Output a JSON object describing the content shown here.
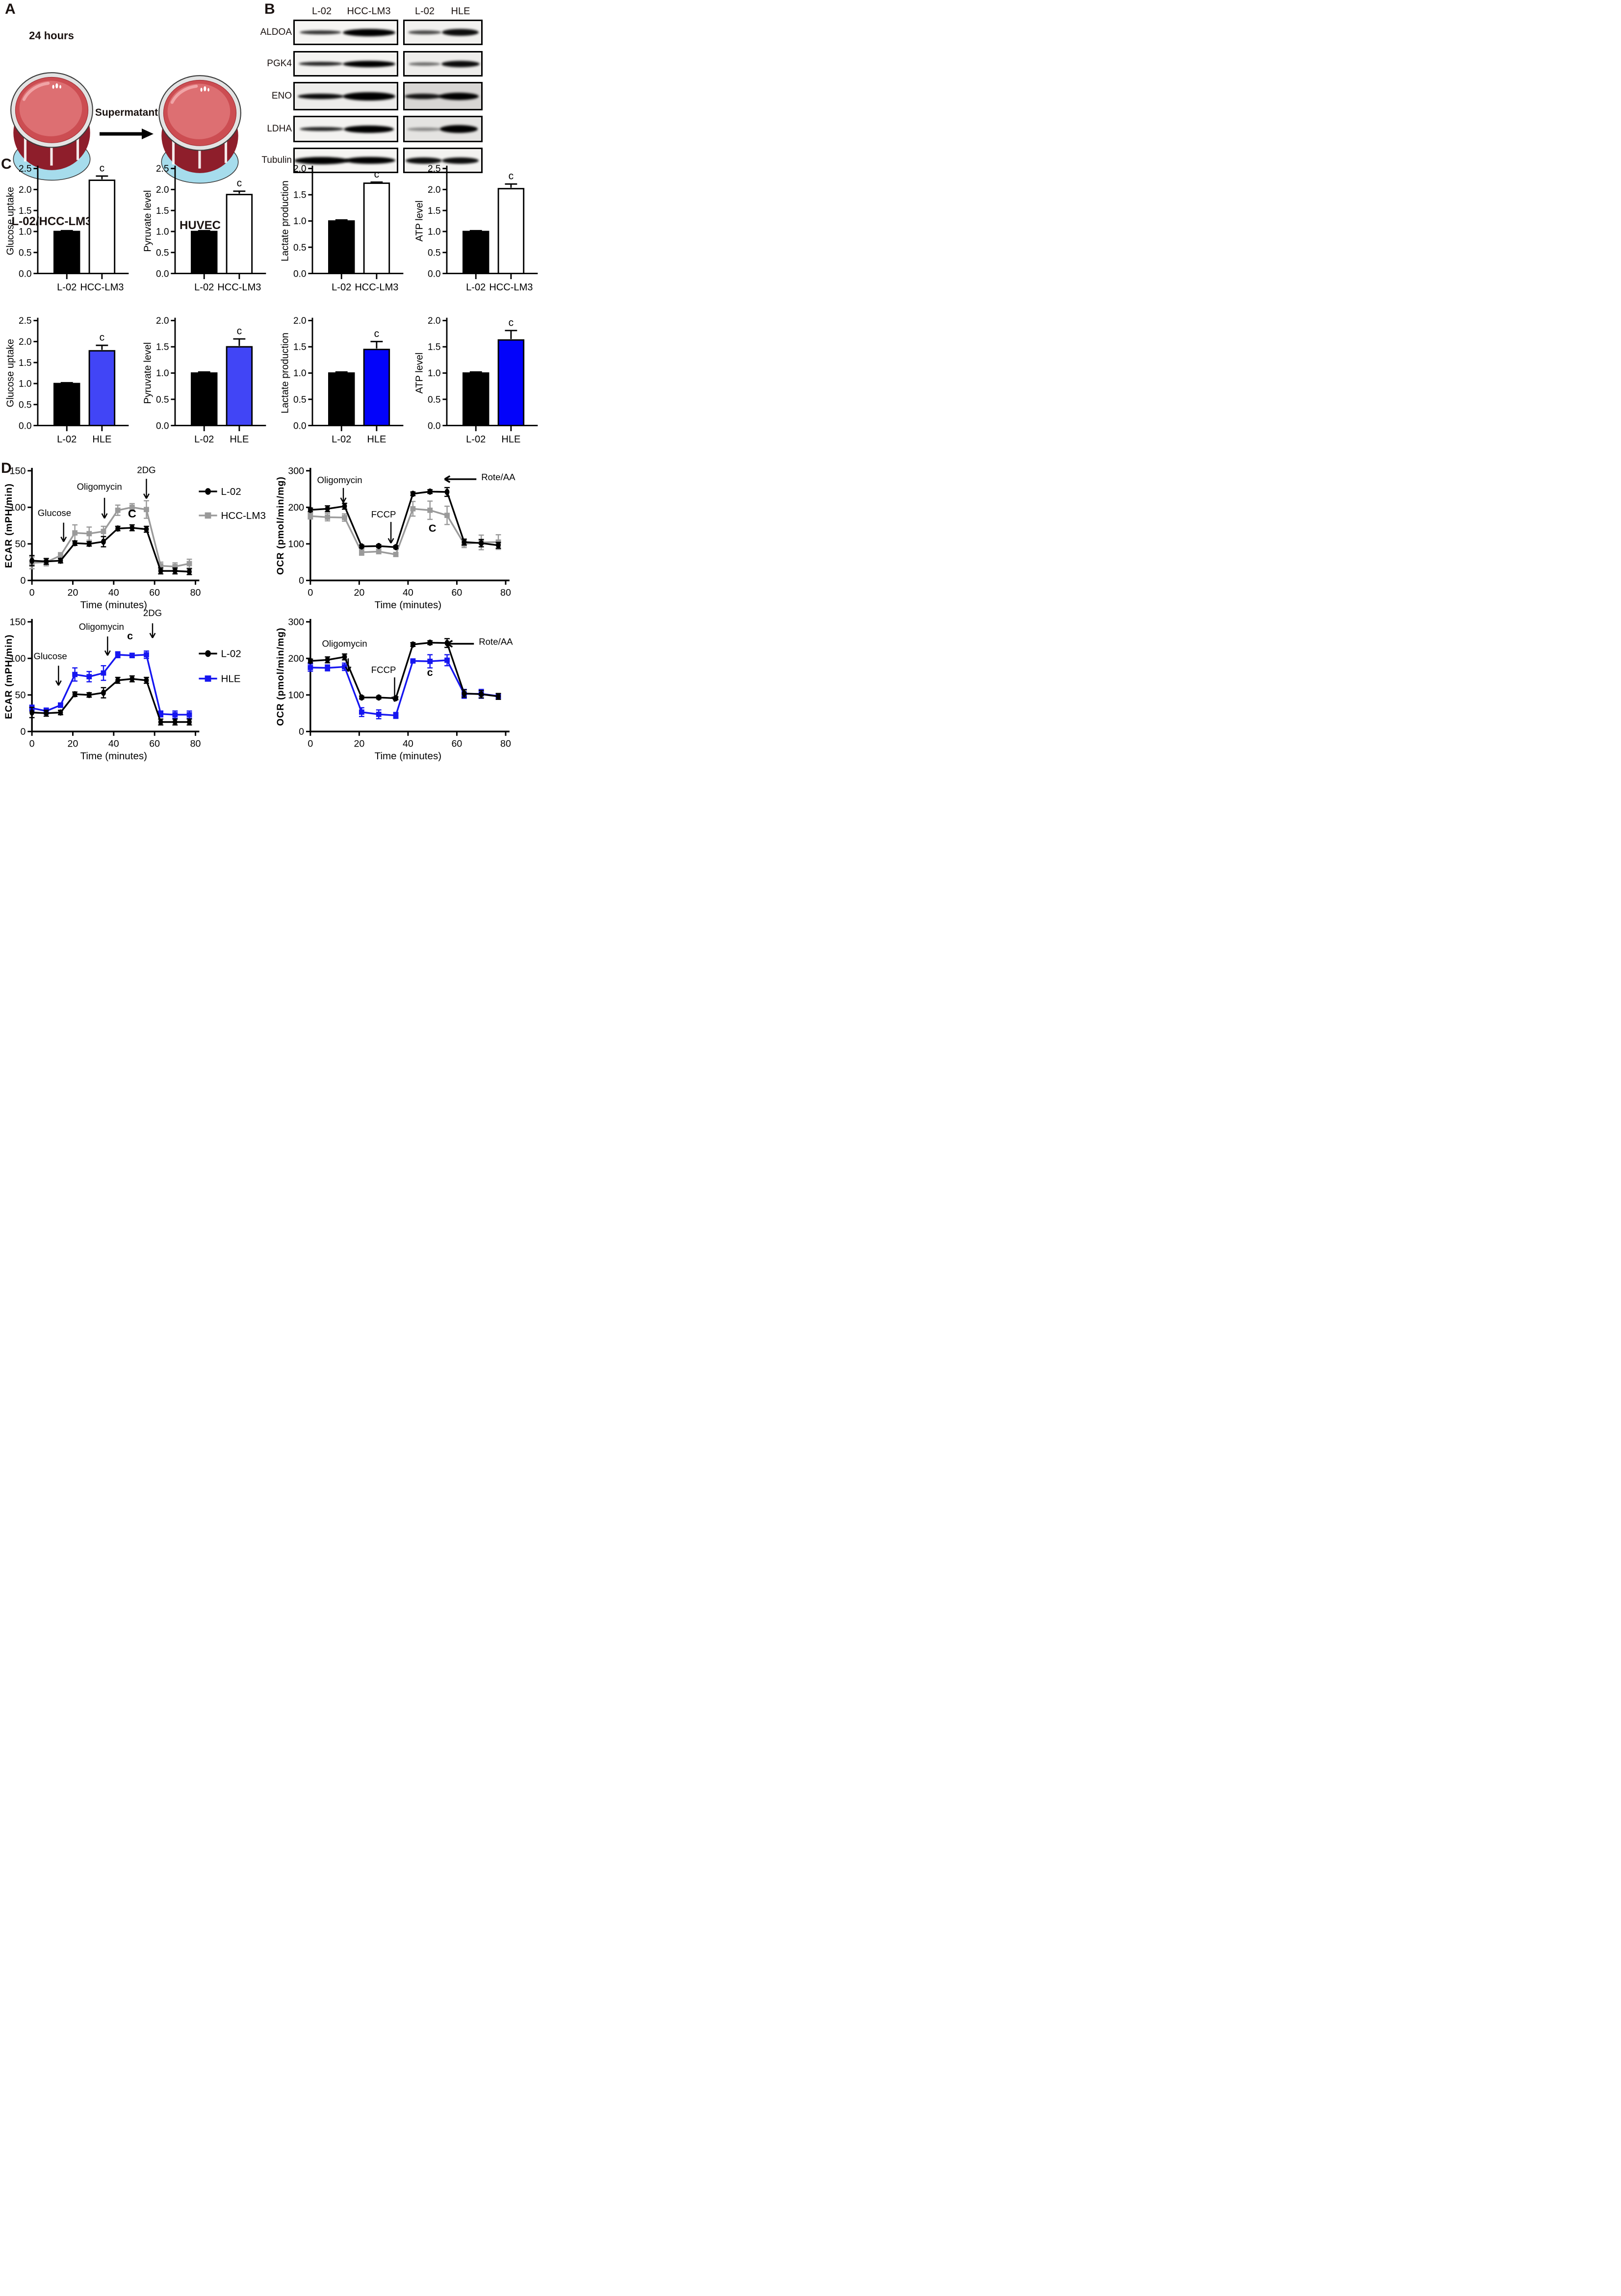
{
  "panel_a": {
    "label": "A",
    "incubation": "24 hours",
    "transfer_label": "Supermatant",
    "source_dish_label": "L-02/HCC-LM3",
    "target_dish_label": "HUVEC"
  },
  "panel_b": {
    "label": "B",
    "blot_groups": [
      {
        "lane1": "L-02",
        "lane2": "HCC-LM3"
      },
      {
        "lane1": "L-02",
        "lane2": "HLE"
      }
    ],
    "rows": [
      {
        "protein": "ALDOA",
        "left_bg": "#f6f5f3",
        "right_bg": "#f2f1ef",
        "left_bands": [
          {
            "center": 0.26,
            "width": 0.4,
            "height": 8,
            "darkness": 0.8
          },
          {
            "center": 0.72,
            "width": 0.5,
            "height": 15,
            "darkness": 1
          }
        ],
        "right_bands": [
          {
            "center": 0.27,
            "width": 0.42,
            "height": 8,
            "darkness": 0.7
          },
          {
            "center": 0.72,
            "width": 0.46,
            "height": 14,
            "darkness": 0.95
          }
        ]
      },
      {
        "protein": "PGK4",
        "left_bg": "#f4f3f1",
        "right_bg": "#eeedeb",
        "left_bands": [
          {
            "center": 0.26,
            "width": 0.42,
            "height": 8,
            "darkness": 0.85
          },
          {
            "center": 0.72,
            "width": 0.5,
            "height": 13,
            "darkness": 1
          }
        ],
        "right_bands": [
          {
            "center": 0.27,
            "width": 0.4,
            "height": 7,
            "darkness": 0.55
          },
          {
            "center": 0.72,
            "width": 0.48,
            "height": 13,
            "darkness": 0.95
          }
        ]
      },
      {
        "protein": "ENO",
        "left_bg": "#edecea",
        "right_bg": "#d8d6d4",
        "left_bands": [
          {
            "center": 0.26,
            "width": 0.44,
            "height": 11,
            "darkness": 0.95
          },
          {
            "center": 0.72,
            "width": 0.5,
            "height": 17,
            "darkness": 1
          }
        ],
        "right_bands": [
          {
            "center": 0.25,
            "width": 0.46,
            "height": 11,
            "darkness": 0.9
          },
          {
            "center": 0.7,
            "width": 0.5,
            "height": 15,
            "darkness": 1
          }
        ]
      },
      {
        "protein": "LDHA",
        "left_bg": "#f3f2f0",
        "right_bg": "#e4e3e1",
        "left_bands": [
          {
            "center": 0.27,
            "width": 0.42,
            "height": 8,
            "darkness": 0.85
          },
          {
            "center": 0.72,
            "width": 0.48,
            "height": 15,
            "darkness": 1
          }
        ],
        "right_bands": [
          {
            "center": 0.27,
            "width": 0.44,
            "height": 7,
            "darkness": 0.4
          },
          {
            "center": 0.7,
            "width": 0.48,
            "height": 16,
            "darkness": 1
          }
        ]
      },
      {
        "protein": "Tubulin",
        "left_bg": "#f5f4f2",
        "right_bg": "#f3f2f0",
        "left_bands": [
          {
            "center": 0.27,
            "width": 0.52,
            "height": 15,
            "darkness": 1
          },
          {
            "center": 0.73,
            "width": 0.48,
            "height": 14,
            "darkness": 1
          }
        ],
        "right_bands": [
          {
            "center": 0.26,
            "width": 0.46,
            "height": 13,
            "darkness": 0.95
          },
          {
            "center": 0.72,
            "width": 0.46,
            "height": 13,
            "darkness": 0.95
          }
        ]
      }
    ]
  },
  "panel_c": {
    "label": "C"
  },
  "panel_d": {
    "label": "D"
  },
  "colors": {
    "l02_black": "#000000",
    "hcclm3_gray": "#9a9a9a",
    "hle_line_blue": "#1616f0",
    "hle_bar_blue_light": "#4145f6",
    "hle_bar_blue_deep": "#0303fa"
  },
  "chart_data": [
    {
      "id": "glucose-uptake-hcc-lm3",
      "type": "bar",
      "ylabel": "Glucose uptake",
      "categories": [
        "L-02",
        "HCC-LM3"
      ],
      "values": [
        1.0,
        2.22
      ],
      "errors": [
        0.02,
        0.1
      ],
      "ylim": [
        0,
        2.5
      ],
      "ytick_step": 0.5,
      "bar_fills": [
        "#000000",
        "#ffffff"
      ],
      "sig_label": "c",
      "sig_bar": 1
    },
    {
      "id": "pyruvate-level-hcc-lm3",
      "type": "bar",
      "ylabel": "Pyruvate level",
      "categories": [
        "L-02",
        "HCC-LM3"
      ],
      "values": [
        1.0,
        1.88
      ],
      "errors": [
        0.02,
        0.08
      ],
      "ylim": [
        0,
        2.5
      ],
      "ytick_step": 0.5,
      "bar_fills": [
        "#000000",
        "#ffffff"
      ],
      "sig_label": "c",
      "sig_bar": 1
    },
    {
      "id": "lactate-production-hcc-lm3",
      "type": "bar",
      "ylabel": "Lactate production",
      "categories": [
        "L-02",
        "HCC-LM3"
      ],
      "values": [
        1.0,
        1.72
      ],
      "errors": [
        0.02,
        0.02
      ],
      "ylim": [
        0,
        2.0
      ],
      "ytick_step": 0.5,
      "bar_fills": [
        "#000000",
        "#ffffff"
      ],
      "sig_label": "c",
      "sig_bar": 1
    },
    {
      "id": "atp-level-hcc-lm3",
      "type": "bar",
      "ylabel": "ATP level",
      "categories": [
        "L-02",
        "HCC-LM3"
      ],
      "values": [
        1.0,
        2.02
      ],
      "errors": [
        0.02,
        0.11
      ],
      "ylim": [
        0,
        2.5
      ],
      "ytick_step": 0.5,
      "bar_fills": [
        "#000000",
        "#ffffff"
      ],
      "sig_label": "c",
      "sig_bar": 1
    },
    {
      "id": "glucose-uptake-hle",
      "type": "bar",
      "ylabel": "Glucose uptake",
      "categories": [
        "L-02",
        "HLE"
      ],
      "values": [
        1.0,
        1.78
      ],
      "errors": [
        0.02,
        0.13
      ],
      "ylim": [
        0,
        2.5
      ],
      "ytick_step": 0.5,
      "bar_fills": [
        "#000000",
        "#4145f6"
      ],
      "sig_label": "c",
      "sig_bar": 1
    },
    {
      "id": "pyruvate-level-hle",
      "type": "bar",
      "ylabel": "Pyruvate level",
      "categories": [
        "L-02",
        "HLE"
      ],
      "values": [
        1.0,
        1.5
      ],
      "errors": [
        0.02,
        0.15
      ],
      "ylim": [
        0,
        2.0
      ],
      "ytick_step": 0.5,
      "bar_fills": [
        "#000000",
        "#4145f6"
      ],
      "sig_label": "c",
      "sig_bar": 1
    },
    {
      "id": "lactate-production-hle",
      "type": "bar",
      "ylabel": "Lactate production",
      "categories": [
        "L-02",
        "HLE"
      ],
      "values": [
        1.0,
        1.45
      ],
      "errors": [
        0.02,
        0.15
      ],
      "ylim": [
        0,
        2.0
      ],
      "ytick_step": 0.5,
      "bar_fills": [
        "#000000",
        "#0303fa"
      ],
      "sig_label": "c",
      "sig_bar": 1
    },
    {
      "id": "atp-level-hle",
      "type": "bar",
      "ylabel": "ATP level",
      "categories": [
        "L-02",
        "HLE"
      ],
      "values": [
        1.0,
        1.63
      ],
      "errors": [
        0.02,
        0.18
      ],
      "ylim": [
        0,
        2.0
      ],
      "ytick_step": 0.5,
      "bar_fills": [
        "#000000",
        "#0303fa"
      ],
      "sig_label": "c",
      "sig_bar": 1
    },
    {
      "id": "ecar-hcc-lm3",
      "type": "line",
      "ylabel": "ECAR (mPH/min)",
      "xlabel": "Time (minutes)",
      "x": [
        0,
        7,
        14,
        21,
        28,
        35,
        42,
        49,
        56,
        63,
        70,
        77
      ],
      "ylim": [
        0,
        150
      ],
      "yticks": [
        0,
        50,
        100,
        150
      ],
      "xticks": [
        0,
        20,
        40,
        60,
        80
      ],
      "legend": true,
      "legend_y": [
        55,
        105
      ],
      "series": [
        {
          "name": "L-02",
          "color": "#000000",
          "marker": "circle",
          "values": [
            27,
            26,
            27,
            51,
            50,
            53,
            71,
            72,
            70,
            13,
            13,
            12
          ],
          "errors": [
            7,
            4,
            3,
            3,
            3,
            7,
            3,
            4,
            4,
            4,
            4,
            4
          ]
        },
        {
          "name": "HCC-LM3",
          "color": "#9a9a9a",
          "marker": "square",
          "values": [
            24,
            25,
            34,
            65,
            64,
            67,
            96,
            100,
            97,
            20,
            19,
            23
          ],
          "errors": [
            8,
            5,
            4,
            11,
            9,
            7,
            7,
            5,
            12,
            5,
            5,
            6
          ]
        }
      ],
      "annotations": [
        {
          "text": "Glucose",
          "x": 11,
          "y": 88,
          "size": 19
        },
        {
          "text": "Oligomycin",
          "x": 33,
          "y": 124,
          "size": 19
        },
        {
          "text": "2DG",
          "x": 56,
          "y": 147,
          "size": 19
        },
        {
          "text": "C",
          "x": 49,
          "y": 86,
          "size": 24,
          "bold": true
        }
      ],
      "varrows": [
        {
          "x": 15.5,
          "y1": 79,
          "y2": 53
        },
        {
          "x": 35.5,
          "y1": 113,
          "y2": 85
        },
        {
          "x": 56,
          "y1": 139,
          "y2": 112
        }
      ],
      "harrows": []
    },
    {
      "id": "ocr-hcc-lm3",
      "type": "line",
      "ylabel": "OCR (pmol/min/mg)",
      "xlabel": "Time (minutes)",
      "x": [
        0,
        7,
        14,
        21,
        28,
        35,
        42,
        49,
        56,
        63,
        70,
        77
      ],
      "ylim": [
        0,
        300
      ],
      "yticks": [
        0,
        100,
        200,
        300
      ],
      "xticks": [
        0,
        20,
        40,
        60,
        80
      ],
      "legend": false,
      "legend_y": [],
      "series": [
        {
          "name": "L-02",
          "color": "#000000",
          "marker": "circle",
          "values": [
            193,
            196,
            203,
            93,
            94,
            91,
            237,
            243,
            242,
            105,
            102,
            96
          ],
          "errors": [
            5,
            8,
            8,
            4,
            4,
            4,
            5,
            5,
            12,
            8,
            10,
            8
          ]
        },
        {
          "name": "HCC-LM3",
          "color": "#9a9a9a",
          "marker": "square",
          "values": [
            176,
            173,
            172,
            77,
            79,
            71,
            196,
            192,
            178,
            100,
            104,
            105
          ],
          "errors": [
            8,
            10,
            10,
            8,
            6,
            5,
            20,
            25,
            25,
            10,
            20,
            20
          ]
        }
      ],
      "annotations": [
        {
          "text": "Oligomycin",
          "x": 12,
          "y": 266,
          "size": 19
        },
        {
          "text": "FCCP",
          "x": 30,
          "y": 172,
          "size": 19
        },
        {
          "text": "Rote/AA",
          "x": 70,
          "y": 274,
          "size": 19,
          "anchor": "start"
        },
        {
          "text": "C",
          "x": 50,
          "y": 133,
          "size": 22,
          "bold": true
        }
      ],
      "varrows": [
        {
          "x": 13.5,
          "y1": 253,
          "y2": 213
        },
        {
          "x": 33,
          "y1": 160,
          "y2": 102
        }
      ],
      "harrows": [
        {
          "y": 277,
          "x1": 68,
          "x2": 55
        }
      ]
    },
    {
      "id": "ecar-hle",
      "type": "line",
      "ylabel": "ECAR (mPH/min)",
      "xlabel": "Time (minutes)",
      "x": [
        0,
        7,
        14,
        21,
        28,
        35,
        42,
        49,
        56,
        63,
        70,
        77
      ],
      "ylim": [
        0,
        150
      ],
      "yticks": [
        0,
        50,
        100,
        150
      ],
      "xticks": [
        0,
        20,
        40,
        60,
        80
      ],
      "legend": true,
      "legend_y": [
        78,
        130
      ],
      "series": [
        {
          "name": "L-02",
          "color": "#000000",
          "marker": "circle",
          "values": [
            26,
            25,
            26,
            51,
            50,
            53,
            70,
            72,
            70,
            13,
            13,
            13
          ],
          "errors": [
            7,
            4,
            3,
            3,
            3,
            7,
            4,
            4,
            4,
            4,
            4,
            4
          ]
        },
        {
          "name": "HLE",
          "color": "#1616f0",
          "marker": "square",
          "values": [
            32,
            28,
            36,
            78,
            75,
            80,
            105,
            104,
            105,
            24,
            23,
            23
          ],
          "errors": [
            4,
            4,
            3,
            9,
            7,
            10,
            4,
            3,
            5,
            4,
            5,
            5
          ]
        }
      ],
      "annotations": [
        {
          "text": "Glucose",
          "x": 9,
          "y": 99,
          "size": 19
        },
        {
          "text": "Oligomycin",
          "x": 34,
          "y": 139,
          "size": 19
        },
        {
          "text": "2DG",
          "x": 59,
          "y": 158,
          "size": 19
        },
        {
          "text": "c",
          "x": 48,
          "y": 126,
          "size": 22,
          "bold": true
        }
      ],
      "varrows": [
        {
          "x": 13,
          "y1": 90,
          "y2": 63
        },
        {
          "x": 37,
          "y1": 130,
          "y2": 104
        },
        {
          "x": 59,
          "y1": 148,
          "y2": 128
        }
      ],
      "harrows": []
    },
    {
      "id": "ocr-hle",
      "type": "line",
      "ylabel": "OCR (pmol/min/mg)",
      "xlabel": "Time (minutes)",
      "x": [
        0,
        7,
        14,
        21,
        28,
        35,
        42,
        49,
        56,
        63,
        70,
        77
      ],
      "ylim": [
        0,
        300
      ],
      "yticks": [
        0,
        100,
        200,
        300
      ],
      "xticks": [
        0,
        20,
        40,
        60,
        80
      ],
      "legend": false,
      "legend_y": [],
      "series": [
        {
          "name": "L-02",
          "color": "#000000",
          "marker": "circle",
          "values": [
            193,
            196,
            204,
            93,
            93,
            91,
            238,
            243,
            242,
            104,
            102,
            96
          ],
          "errors": [
            5,
            8,
            8,
            4,
            4,
            4,
            5,
            5,
            12,
            10,
            10,
            8
          ]
        },
        {
          "name": "HLE",
          "color": "#1616f0",
          "marker": "square",
          "values": [
            175,
            174,
            177,
            53,
            47,
            44,
            193,
            192,
            195,
            103,
            103,
            97
          ],
          "errors": [
            10,
            8,
            10,
            12,
            12,
            8,
            5,
            18,
            15,
            12,
            12,
            6
          ]
        }
      ],
      "annotations": [
        {
          "text": "Oligomycin",
          "x": 14,
          "y": 232,
          "size": 19
        },
        {
          "text": "FCCP",
          "x": 30,
          "y": 160,
          "size": 19
        },
        {
          "text": "Rote/AA",
          "x": 69,
          "y": 237,
          "size": 19,
          "anchor": "start"
        },
        {
          "text": "c",
          "x": 49,
          "y": 152,
          "size": 22,
          "bold": true
        }
      ],
      "varrows": [
        {
          "x": 15.5,
          "y1": 200,
          "y2": 164
        },
        {
          "x": 34.5,
          "y1": 148,
          "y2": 82
        }
      ],
      "harrows": [
        {
          "y": 240,
          "x1": 67,
          "x2": 56
        }
      ]
    }
  ]
}
